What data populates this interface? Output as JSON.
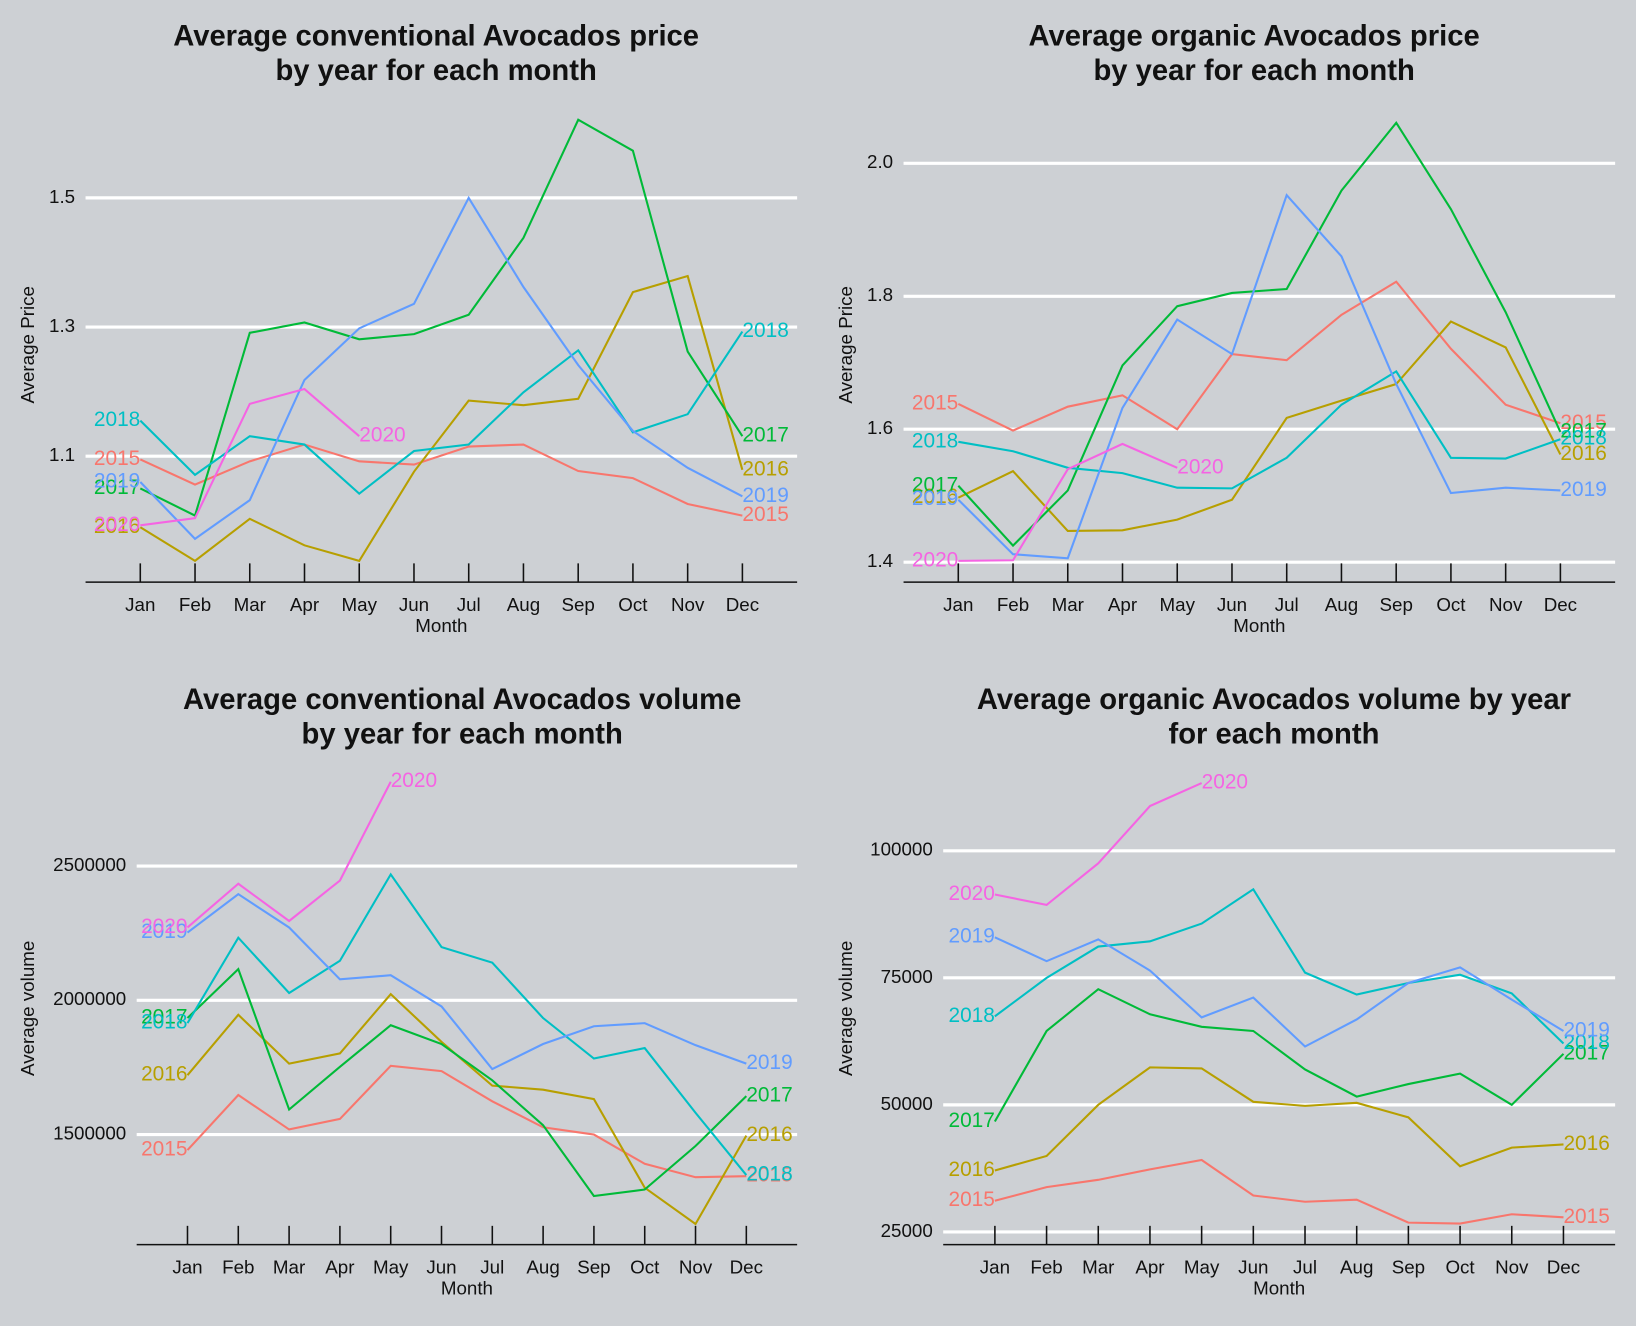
{
  "chart_data": [
    {
      "type": "line",
      "title": "Average conventional Avocados price\nby year for each month",
      "x_label": "Month",
      "y_label": "Average Price",
      "categories": [
        "Jan",
        "Feb",
        "Mar",
        "Apr",
        "May",
        "Jun",
        "Jul",
        "Aug",
        "Sep",
        "Oct",
        "Nov",
        "Dec"
      ],
      "ylim": [
        0.905,
        1.64
      ],
      "yticks": [
        1.1,
        1.3,
        1.5
      ],
      "grid": true,
      "series": [
        {
          "name": "2015",
          "color": "#F8766D",
          "values": [
            1.095,
            1.056,
            1.092,
            1.118,
            1.092,
            1.087,
            1.115,
            1.118,
            1.077,
            1.066,
            1.026,
            1.008
          ]
        },
        {
          "name": "2016",
          "color": "#B79F00",
          "values": [
            0.99,
            0.938,
            1.003,
            0.962,
            0.938,
            1.076,
            1.186,
            1.179,
            1.189,
            1.354,
            1.379,
            1.079
          ]
        },
        {
          "name": "2017",
          "color": "#00BA38",
          "values": [
            1.05,
            1.008,
            1.291,
            1.307,
            1.281,
            1.289,
            1.319,
            1.438,
            1.621,
            1.573,
            1.262,
            1.131
          ]
        },
        {
          "name": "2018",
          "color": "#00BFC4",
          "values": [
            1.155,
            1.071,
            1.131,
            1.118,
            1.042,
            1.108,
            1.118,
            1.199,
            1.264,
            1.137,
            1.165,
            1.293
          ]
        },
        {
          "name": "2019",
          "color": "#619CFF",
          "values": [
            1.06,
            0.972,
            1.032,
            1.218,
            1.298,
            1.336,
            1.5,
            1.362,
            1.241,
            1.139,
            1.082,
            1.038
          ]
        },
        {
          "name": "2020",
          "color": "#F564E3",
          "values": [
            0.993,
            1.004,
            1.181,
            1.204,
            1.131,
            null,
            null,
            null,
            null,
            null,
            null,
            null
          ]
        }
      ]
    },
    {
      "type": "line",
      "title": "Average organic Avocados price\nby year for each month",
      "x_label": "Month",
      "y_label": "Average Price",
      "categories": [
        "Jan",
        "Feb",
        "Mar",
        "Apr",
        "May",
        "Jun",
        "Jul",
        "Aug",
        "Sep",
        "Oct",
        "Nov",
        "Dec"
      ],
      "ylim": [
        1.37,
        2.084
      ],
      "yticks": [
        1.4,
        1.6,
        1.8,
        {
          "value": 2,
          "label": "2.0"
        }
      ],
      "grid": true,
      "series": [
        {
          "name": "2015",
          "color": "#F8766D",
          "values": [
            1.638,
            1.598,
            1.634,
            1.651,
            1.6,
            1.713,
            1.704,
            1.772,
            1.822,
            1.721,
            1.637,
            1.609
          ]
        },
        {
          "name": "2016",
          "color": "#B79F00",
          "values": [
            1.497,
            1.537,
            1.447,
            1.448,
            1.464,
            1.494,
            1.617,
            1.643,
            1.668,
            1.762,
            1.723,
            1.562
          ]
        },
        {
          "name": "2017",
          "color": "#00BA38",
          "values": [
            1.515,
            1.425,
            1.508,
            1.696,
            1.785,
            1.805,
            1.811,
            1.959,
            2.061,
            1.931,
            1.776,
            1.596
          ]
        },
        {
          "name": "2018",
          "color": "#00BFC4",
          "values": [
            1.581,
            1.567,
            1.542,
            1.534,
            1.512,
            1.511,
            1.557,
            1.637,
            1.687,
            1.557,
            1.556,
            1.585
          ]
        },
        {
          "name": "2019",
          "color": "#619CFF",
          "values": [
            1.494,
            1.412,
            1.406,
            1.632,
            1.765,
            1.713,
            1.952,
            1.86,
            1.668,
            1.504,
            1.512,
            1.508
          ]
        },
        {
          "name": "2020",
          "color": "#F564E3",
          "values": [
            1.402,
            1.403,
            1.54,
            1.578,
            1.542,
            null,
            null,
            null,
            null,
            null,
            null,
            null
          ]
        }
      ]
    },
    {
      "type": "line",
      "title": "Average conventional Avocados volume\nby year for each month",
      "x_label": "Month",
      "y_label": "Average volume",
      "categories": [
        "Jan",
        "Feb",
        "Mar",
        "Apr",
        "May",
        "Jun",
        "Jul",
        "Aug",
        "Sep",
        "Oct",
        "Nov",
        "Dec"
      ],
      "ylim": [
        1090000,
        2850000
      ],
      "yticks": [
        1500000,
        2000000,
        2500000
      ],
      "grid": true,
      "series": [
        {
          "name": "2015",
          "color": "#F8766D",
          "values": [
            1442000,
            1647000,
            1519000,
            1558000,
            1756000,
            1736000,
            1624000,
            1527000,
            1500000,
            1391000,
            1341000,
            1345000
          ]
        },
        {
          "name": "2016",
          "color": "#B79F00",
          "values": [
            1721000,
            1946000,
            1764000,
            1802000,
            2023000,
            1845000,
            1682000,
            1667000,
            1632000,
            1302000,
            1167000,
            1496000
          ]
        },
        {
          "name": "2017",
          "color": "#00BA38",
          "values": [
            1934000,
            2116000,
            1593000,
            1752000,
            1907000,
            1837000,
            1702000,
            1535000,
            1271000,
            1295000,
            1457000,
            1643000
          ]
        },
        {
          "name": "2018",
          "color": "#00BFC4",
          "values": [
            1915000,
            2233000,
            2027000,
            2147000,
            2469000,
            2198000,
            2140000,
            1934000,
            1783000,
            1822000,
            1581000,
            1349000
          ]
        },
        {
          "name": "2019",
          "color": "#619CFF",
          "values": [
            2252000,
            2395000,
            2271000,
            2078000,
            2093000,
            1977000,
            1744000,
            1837000,
            1903000,
            1915000,
            1833000,
            1764000
          ]
        },
        {
          "name": "2020",
          "color": "#F564E3",
          "values": [
            2271000,
            2434000,
            2295000,
            2446000,
            2814000,
            null,
            null,
            null,
            null,
            null,
            null,
            null
          ]
        }
      ]
    },
    {
      "type": "line",
      "title": "Average organic Avocados volume by year\nfor each month",
      "x_label": "Month",
      "y_label": "Average volume",
      "categories": [
        "Jan",
        "Feb",
        "Mar",
        "Apr",
        "May",
        "Jun",
        "Jul",
        "Aug",
        "Sep",
        "Oct",
        "Nov",
        "Dec"
      ],
      "ylim": [
        22500,
        115500
      ],
      "yticks": [
        25000,
        50000,
        75000,
        100000
      ],
      "grid": true,
      "series": [
        {
          "name": "2015",
          "color": "#F8766D",
          "values": [
            31150,
            33810,
            35250,
            37300,
            39140,
            32170,
            30940,
            31350,
            26840,
            26640,
            28480,
            27870
          ]
        },
        {
          "name": "2016",
          "color": "#B79F00",
          "values": [
            37090,
            39960,
            50000,
            57380,
            57170,
            50610,
            49800,
            50410,
            47540,
            37910,
            41600,
            42210
          ]
        },
        {
          "name": "2017",
          "color": "#00BA38",
          "values": [
            46720,
            64550,
            72750,
            67830,
            65370,
            64550,
            56970,
            51640,
            54100,
            56150,
            50000,
            60040
          ]
        },
        {
          "name": "2018",
          "color": "#00BFC4",
          "values": [
            67420,
            75000,
            81150,
            82170,
            85660,
            92420,
            76020,
            71720,
            73980,
            75610,
            71930,
            62090
          ]
        },
        {
          "name": "2019",
          "color": "#619CFF",
          "values": [
            82990,
            78280,
            82580,
            76430,
            67210,
            71110,
            61480,
            66800,
            73980,
            77050,
            70700,
            64550
          ]
        },
        {
          "name": "2020",
          "color": "#F564E3",
          "values": [
            91390,
            89340,
            97540,
            108810,
            113320,
            null,
            null,
            null,
            null,
            null,
            null,
            null
          ]
        }
      ]
    }
  ]
}
